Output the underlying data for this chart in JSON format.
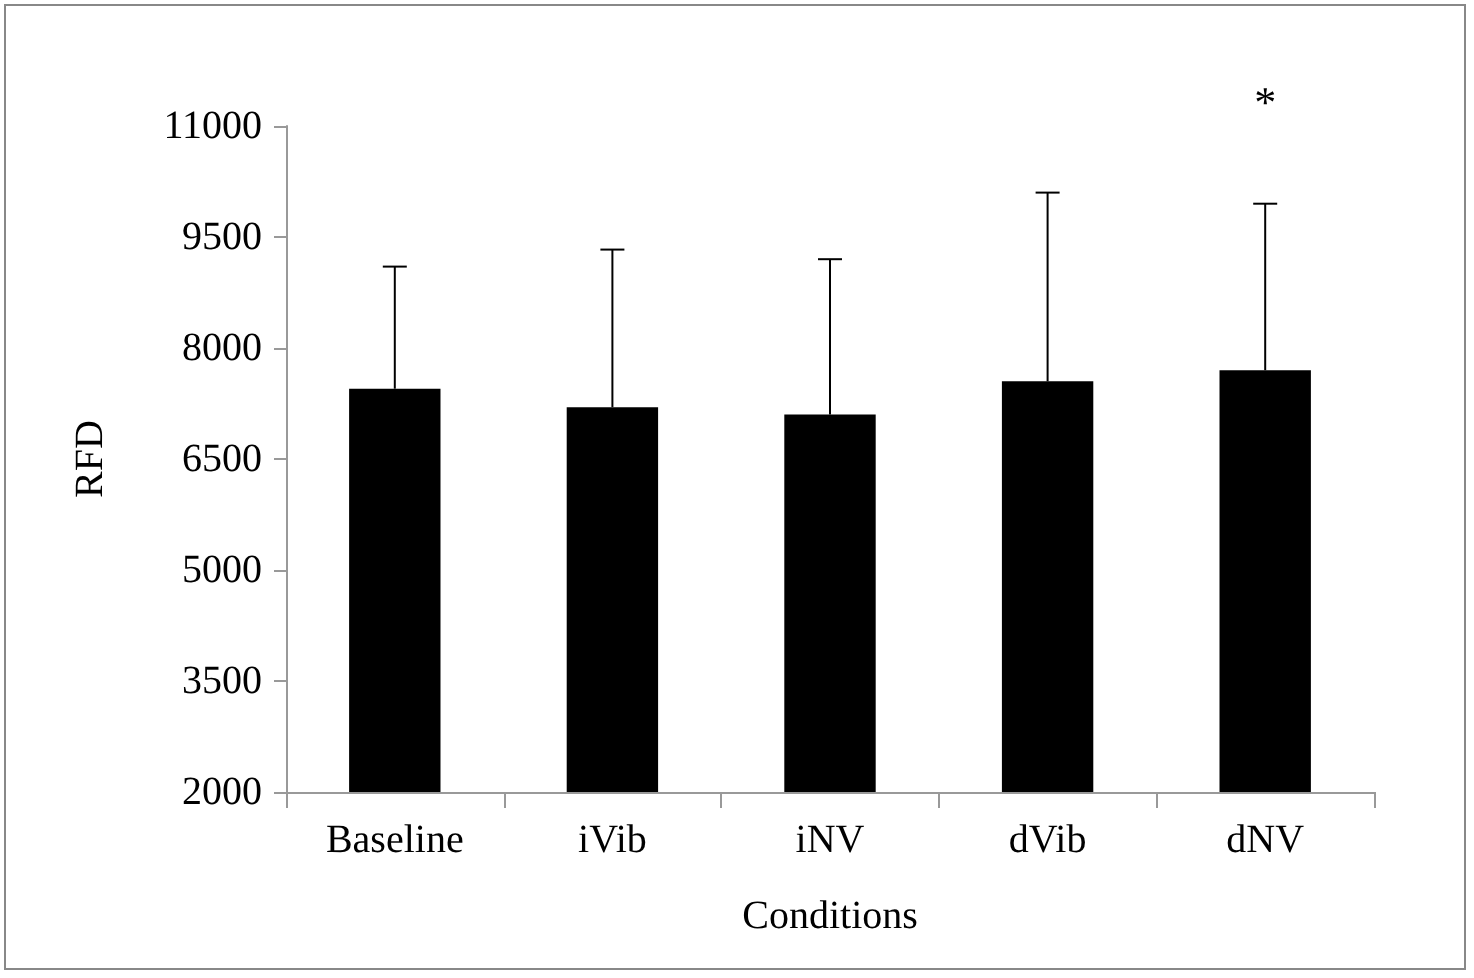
{
  "chart_data": {
    "type": "bar",
    "xlabel": "Conditions",
    "ylabel": "RFD",
    "categories": [
      "Baseline",
      "iVib",
      "iNV",
      "dVib",
      "dNV"
    ],
    "values": [
      7450,
      7200,
      7100,
      7550,
      7700
    ],
    "errors": [
      [
        7450,
        9100
      ],
      [
        7200,
        9330
      ],
      [
        7100,
        9200
      ],
      [
        7550,
        10100
      ],
      [
        7700,
        9950
      ]
    ],
    "color": "#000000",
    "ylim": [
      2000,
      11000
    ],
    "yticks": [
      2000,
      3500,
      5000,
      6500,
      8000,
      9500,
      11000
    ],
    "grid": false,
    "annotations": [
      "*"
    ]
  }
}
